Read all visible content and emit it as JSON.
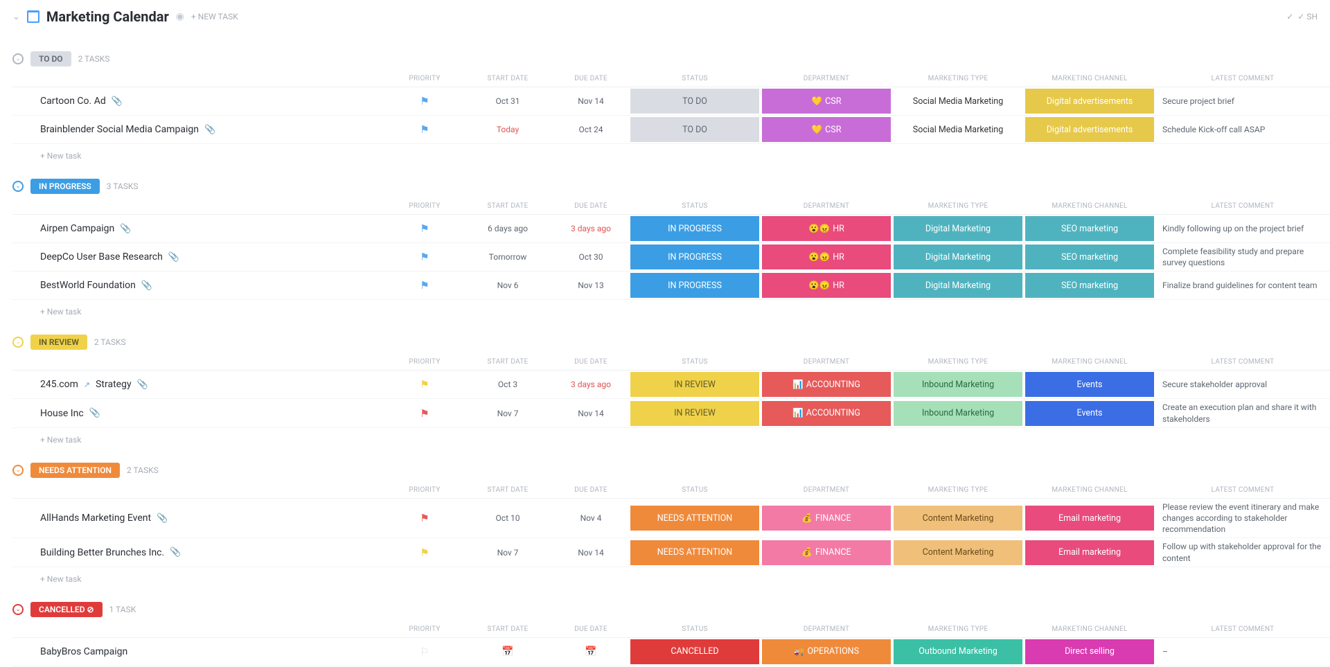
{
  "header": {
    "title": "Marketing Calendar",
    "new_task_label": "+ NEW TASK",
    "right_badge": "✓ SH"
  },
  "columns": {
    "priority": "PRIORITY",
    "start_date": "START DATE",
    "due_date": "DUE DATE",
    "status": "STATUS",
    "department": "DEPARTMENT",
    "marketing_type": "MARKETING TYPE",
    "marketing_channel": "MARKETING CHANNEL",
    "latest_comment": "LATEST COMMENT"
  },
  "new_task_row_label": "+ New task",
  "groups": [
    {
      "id": "todo",
      "name": "TO DO",
      "pill_bg": "#d9dde3",
      "pill_color": "#5e6672",
      "toggle_color": "#b0b6bf",
      "count_label": "2 TASKS",
      "tasks": [
        {
          "bullet_color": "#d9dde3",
          "name": "Cartoon Co. Ad",
          "has_attachment": true,
          "priority_flag_color": "#5aa7f0",
          "start_date": "Oct 31",
          "due_date": "Nov 14",
          "status": {
            "label": "TO DO",
            "bg": "#d9dde3",
            "color": "#5e6672"
          },
          "department": {
            "label": "CSR",
            "emoji": "💛",
            "bg": "#c86dd7"
          },
          "marketing_type": {
            "label": "Social Media Marketing",
            "bg": "#ffffff",
            "color": "#333"
          },
          "marketing_channel": {
            "label": "Digital advertisements",
            "bg": "#e6c94a"
          },
          "comment": "Secure project brief"
        },
        {
          "bullet_color": "#d9dde3",
          "name": "Brainblender Social Media Campaign",
          "has_attachment": true,
          "priority_flag_color": "#5aa7f0",
          "start_date": "Today",
          "start_overdue": true,
          "due_date": "Oct 24",
          "status": {
            "label": "TO DO",
            "bg": "#d9dde3",
            "color": "#5e6672"
          },
          "department": {
            "label": "CSR",
            "emoji": "💛",
            "bg": "#c86dd7"
          },
          "marketing_type": {
            "label": "Social Media Marketing",
            "bg": "#ffffff",
            "color": "#333"
          },
          "marketing_channel": {
            "label": "Digital advertisements",
            "bg": "#e6c94a"
          },
          "comment": "Schedule Kick-off call ASAP"
        }
      ]
    },
    {
      "id": "in_progress",
      "name": "IN PROGRESS",
      "pill_bg": "#3b9ee5",
      "pill_color": "#ffffff",
      "toggle_color": "#3b9ee5",
      "count_label": "3 TASKS",
      "tasks": [
        {
          "bullet_color": "#3b9ee5",
          "name": "Airpen Campaign",
          "has_attachment": true,
          "priority_flag_color": "#5aa7f0",
          "start_date": "6 days ago",
          "due_date": "3 days ago",
          "due_overdue": true,
          "status": {
            "label": "IN PROGRESS",
            "bg": "#3b9ee5"
          },
          "department": {
            "label": "HR",
            "emoji": "😮😠",
            "bg": "#e94b7c"
          },
          "marketing_type": {
            "label": "Digital Marketing",
            "bg": "#4fb3bf"
          },
          "marketing_channel": {
            "label": "SEO marketing",
            "bg": "#4fb3bf"
          },
          "comment": "Kindly following up on the project brief"
        },
        {
          "bullet_color": "#3b9ee5",
          "name": "DeepCo User Base Research",
          "has_attachment": true,
          "priority_flag_color": "#5aa7f0",
          "start_date": "Tomorrow",
          "due_date": "Oct 30",
          "status": {
            "label": "IN PROGRESS",
            "bg": "#3b9ee5"
          },
          "department": {
            "label": "HR",
            "emoji": "😮😠",
            "bg": "#e94b7c"
          },
          "marketing_type": {
            "label": "Digital Marketing",
            "bg": "#4fb3bf"
          },
          "marketing_channel": {
            "label": "SEO marketing",
            "bg": "#4fb3bf"
          },
          "comment": "Complete feasibility study and prepare survey questions"
        },
        {
          "bullet_color": "#3b9ee5",
          "name": "BestWorld Foundation",
          "has_attachment": true,
          "priority_flag_color": "#5aa7f0",
          "start_date": "Nov 6",
          "due_date": "Nov 13",
          "status": {
            "label": "IN PROGRESS",
            "bg": "#3b9ee5"
          },
          "department": {
            "label": "HR",
            "emoji": "😮😠",
            "bg": "#e94b7c"
          },
          "marketing_type": {
            "label": "Digital Marketing",
            "bg": "#4fb3bf"
          },
          "marketing_channel": {
            "label": "SEO marketing",
            "bg": "#4fb3bf"
          },
          "comment": "Finalize brand guidelines for content team"
        }
      ]
    },
    {
      "id": "in_review",
      "name": "IN REVIEW",
      "pill_bg": "#f0d24a",
      "pill_color": "#5e5a2a",
      "toggle_color": "#f0d24a",
      "count_label": "2 TASKS",
      "tasks": [
        {
          "bullet_color": "#f0d24a",
          "name": "245.com",
          "name_suffix": "Strategy",
          "has_ext_link": true,
          "has_attachment": true,
          "priority_flag_color": "#f0d24a",
          "start_date": "Oct 3",
          "due_date": "3 days ago",
          "due_overdue": true,
          "status": {
            "label": "IN REVIEW",
            "bg": "#f0d24a",
            "color": "#5e5a2a"
          },
          "department": {
            "label": "ACCOUNTING",
            "emoji": "📊",
            "bg": "#e65a5a"
          },
          "marketing_type": {
            "label": "Inbound Marketing",
            "bg": "#a5e0b8",
            "color": "#2a6a3f"
          },
          "marketing_channel": {
            "label": "Events",
            "bg": "#3b6de5"
          },
          "comment": "Secure stakeholder approval"
        },
        {
          "bullet_color": "#f0d24a",
          "name": "House Inc",
          "has_attachment": true,
          "priority_flag_color": "#e65a5a",
          "start_date": "Nov 7",
          "due_date": "Nov 14",
          "status": {
            "label": "IN REVIEW",
            "bg": "#f0d24a",
            "color": "#5e5a2a"
          },
          "department": {
            "label": "ACCOUNTING",
            "emoji": "📊",
            "bg": "#e65a5a"
          },
          "marketing_type": {
            "label": "Inbound Marketing",
            "bg": "#a5e0b8",
            "color": "#2a6a3f"
          },
          "marketing_channel": {
            "label": "Events",
            "bg": "#3b6de5"
          },
          "comment": "Create an execution plan and share it with stakeholders"
        }
      ]
    },
    {
      "id": "needs_attention",
      "name": "NEEDS ATTENTION",
      "pill_bg": "#f08a3b",
      "pill_color": "#ffffff",
      "toggle_color": "#f08a3b",
      "count_label": "2 TASKS",
      "tasks": [
        {
          "bullet_color": "#f08a3b",
          "name": "AllHands Marketing Event",
          "has_attachment": true,
          "priority_flag_color": "#e65a5a",
          "start_date": "Oct 10",
          "due_date": "Nov 4",
          "status": {
            "label": "NEEDS ATTENTION",
            "bg": "#f08a3b"
          },
          "department": {
            "label": "FINANCE",
            "emoji": "💰",
            "bg": "#f27aa5"
          },
          "marketing_type": {
            "label": "Content Marketing",
            "bg": "#f0c07a",
            "color": "#6a4a1a"
          },
          "marketing_channel": {
            "label": "Email marketing",
            "bg": "#e94b7c"
          },
          "comment": "Please review the event itinerary and make changes according to stakeholder recommendation"
        },
        {
          "bullet_color": "#f08a3b",
          "name": "Building Better Brunches Inc.",
          "has_attachment": true,
          "priority_flag_color": "#f0d24a",
          "start_date": "Nov 7",
          "due_date": "Nov 14",
          "status": {
            "label": "NEEDS ATTENTION",
            "bg": "#f08a3b"
          },
          "department": {
            "label": "FINANCE",
            "emoji": "💰",
            "bg": "#f27aa5"
          },
          "marketing_type": {
            "label": "Content Marketing",
            "bg": "#f0c07a",
            "color": "#6a4a1a"
          },
          "marketing_channel": {
            "label": "Email marketing",
            "bg": "#e94b7c"
          },
          "comment": "Follow up with stakeholder approval for the content"
        }
      ]
    },
    {
      "id": "cancelled",
      "name": "CANCELLED",
      "pill_bg": "#e03b3b",
      "pill_color": "#ffffff",
      "pill_icon": "⊘",
      "toggle_color": "#e03b3b",
      "count_label": "1 TASK",
      "no_new_task": true,
      "tasks": [
        {
          "bullet_color": "#e03b3b",
          "name": "BabyBros Campaign",
          "priority_flag_empty": true,
          "start_date_empty": true,
          "due_date_empty": true,
          "status": {
            "label": "CANCELLED",
            "bg": "#e03b3b"
          },
          "department": {
            "label": "OPERATIONS",
            "emoji": "🚚",
            "bg": "#f08a3b"
          },
          "marketing_type": {
            "label": "Outbound Marketing",
            "bg": "#3bbfa5"
          },
          "marketing_channel": {
            "label": "Direct selling",
            "bg": "#d93bb0"
          },
          "comment": "–"
        }
      ]
    }
  ]
}
